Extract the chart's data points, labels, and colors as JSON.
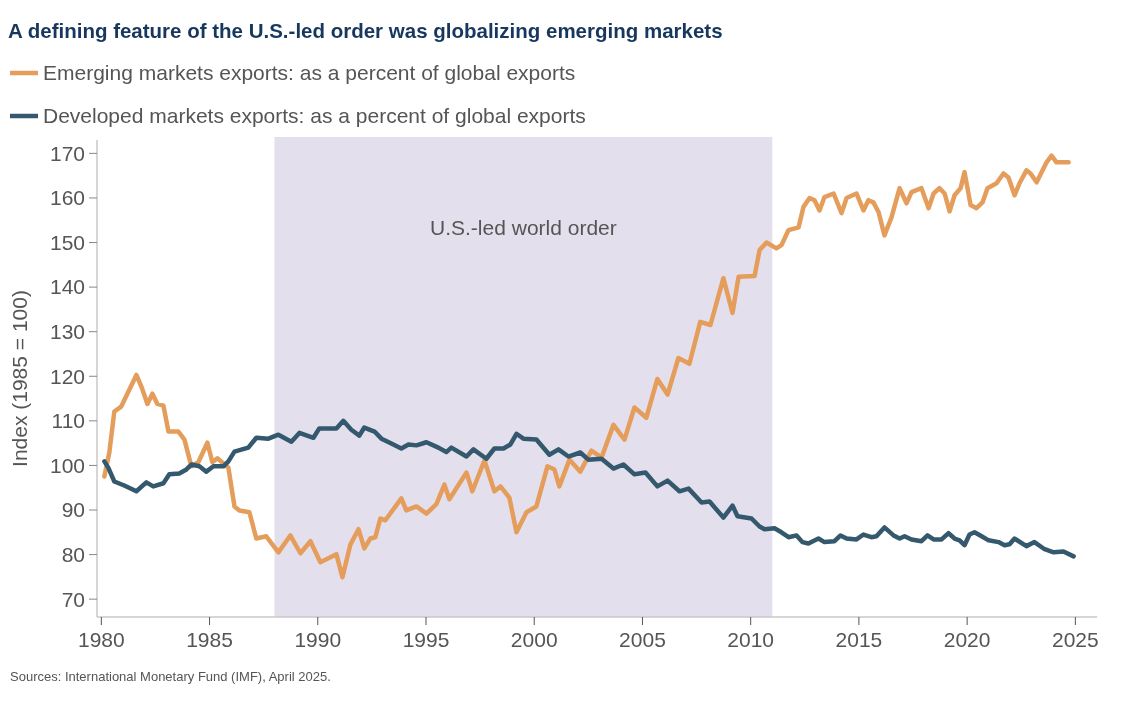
{
  "chart_data": {
    "type": "line",
    "title": "A defining feature of the U.S.-led order was globalizing emerging markets",
    "ylabel": "Index (1985 = 100)",
    "annotations": [
      "Sources: International Monetary Fund (IMF), April 2025."
    ],
    "xlim": [
      1979.8,
      2026
    ],
    "xticks": [
      1980,
      1985,
      1990,
      1995,
      2000,
      2005,
      2010,
      2015,
      2020,
      2025
    ],
    "ylim": [
      66,
      173
    ],
    "yticks": [
      70,
      80,
      90,
      100,
      110,
      120,
      130,
      140,
      150,
      160,
      170
    ],
    "grid": false,
    "legend": "top",
    "marker": "none",
    "line_style": "solid",
    "bands": [
      {
        "axis": "x",
        "from": 1988,
        "to": 2011,
        "label": "U.S.-led world order",
        "color": "#e4dfec"
      }
    ],
    "series": [
      {
        "name": "Emerging markets exports: as a percent of global exports",
        "color": "#e49d5b",
        "x": [
          1980.14,
          1980.37,
          1980.6,
          1980.92,
          1981.62,
          1981.85,
          1982.13,
          1982.36,
          1982.59,
          1982.87,
          1983.1,
          1983.56,
          1983.84,
          1984.16,
          1984.48,
          1984.9,
          1985.13,
          1985.36,
          1985.87,
          1986.15,
          1986.38,
          1986.84,
          1987.16,
          1987.62,
          1988.18,
          1988.73,
          1989.2,
          1989.66,
          1990.12,
          1990.86,
          1991.14,
          1991.51,
          1991.88,
          1992.15,
          1992.43,
          1992.66,
          1992.89,
          1993.12,
          1993.86,
          1994.09,
          1994.56,
          1995.02,
          1995.48,
          1995.85,
          1996.08,
          1996.87,
          1997.14,
          1997.7,
          1998.16,
          1998.44,
          1998.85,
          1999.18,
          1999.64,
          2000.1,
          2000.61,
          2000.93,
          2001.16,
          2001.63,
          2002.13,
          2002.64,
          2003.11,
          2003.66,
          2004.17,
          2004.63,
          2005.18,
          2005.69,
          2006.16,
          2006.66,
          2007.17,
          2007.67,
          2008.14,
          2008.74,
          2009.16,
          2009.44,
          2010.18,
          2010.41,
          2010.73,
          2011.19,
          2011.42,
          2011.75,
          2012.21,
          2012.44,
          2012.72,
          2012.95,
          2013.18,
          2013.41,
          2013.83,
          2014.2,
          2014.43,
          2014.89,
          2015.21,
          2015.44,
          2015.67,
          2015.91,
          2016.18,
          2016.51,
          2016.88,
          2017.2,
          2017.43,
          2017.89,
          2018.22,
          2018.45,
          2018.72,
          2018.96,
          2019.19,
          2019.42,
          2019.7,
          2019.88,
          2020.16,
          2020.43,
          2020.71,
          2020.94,
          2021.36,
          2021.68,
          2021.91,
          2022.19,
          2022.42,
          2022.74,
          2022.93,
          2023.21,
          2023.67,
          2023.9,
          2024.13,
          2024.69
        ],
        "values": [
          97.5,
          102.9,
          112.1,
          113.2,
          120.3,
          117.7,
          113.8,
          116.1,
          113.8,
          113.4,
          107.6,
          107.6,
          105.8,
          99.8,
          100.7,
          105.1,
          100.7,
          101.6,
          99.5,
          90.8,
          89.9,
          89.5,
          83.6,
          84.1,
          80.5,
          84.3,
          80.3,
          83,
          78.3,
          80.1,
          74.9,
          82.3,
          85.7,
          81.4,
          83.6,
          83.9,
          88.1,
          87.7,
          92.6,
          89.9,
          90.8,
          89.2,
          91.3,
          95.7,
          92.4,
          98.4,
          94.2,
          101.1,
          94.2,
          95.3,
          92.8,
          85,
          89.5,
          90.8,
          99.8,
          99.1,
          95.3,
          101.3,
          98.6,
          103.3,
          101.8,
          109.1,
          105.8,
          113,
          110.7,
          119.4,
          115.9,
          124.1,
          122.8,
          132.2,
          131.5,
          142,
          134.2,
          142.3,
          142.5,
          148.3,
          150,
          148.7,
          149.4,
          152.8,
          153.4,
          158,
          160,
          159.5,
          157.2,
          160.2,
          161,
          156.6,
          160,
          161,
          157.2,
          159.5,
          159,
          156.8,
          151.6,
          155.7,
          162.2,
          158.8,
          161.3,
          162.2,
          157.7,
          161,
          162.2,
          161,
          157,
          160.6,
          162.2,
          165.8,
          158.4,
          157.7,
          159,
          162.2,
          163.3,
          165.5,
          164.6,
          160.6,
          163.3,
          166.2,
          165.5,
          163.5,
          168,
          169.5,
          168,
          168
        ]
      },
      {
        "name": "Developed markets exports: as a percent of global exports",
        "color": "#34596e",
        "x": [
          1980.14,
          1980.32,
          1980.6,
          1981.06,
          1981.62,
          1982.08,
          1982.4,
          1982.87,
          1983.14,
          1983.6,
          1983.93,
          1984.16,
          1984.53,
          1984.85,
          1985.18,
          1985.64,
          1985.87,
          1986.15,
          1986.79,
          1987.16,
          1987.72,
          1988.18,
          1988.78,
          1989.15,
          1989.8,
          1990.07,
          1990.86,
          1991.18,
          1991.55,
          1991.92,
          1992.15,
          1992.62,
          1992.94,
          1993.4,
          1993.86,
          1994.19,
          1994.56,
          1995.02,
          1995.57,
          1995.94,
          1996.17,
          1996.87,
          1997.19,
          1997.79,
          1998.16,
          1998.58,
          1998.9,
          1999.18,
          1999.5,
          2000.1,
          2000.7,
          2001.12,
          2001.58,
          2002.13,
          2002.5,
          2003.11,
          2003.66,
          2004.12,
          2004.63,
          2005.14,
          2005.69,
          2006.16,
          2006.71,
          2007.13,
          2007.73,
          2008.1,
          2008.74,
          2009.16,
          2009.39,
          2010.04,
          2010.41,
          2010.64,
          2011.1,
          2011.42,
          2011.75,
          2012.12,
          2012.39,
          2012.67,
          2013.13,
          2013.41,
          2013.87,
          2014.15,
          2014.43,
          2014.89,
          2015.21,
          2015.58,
          2015.81,
          2016.18,
          2016.6,
          2016.88,
          2017.11,
          2017.43,
          2017.89,
          2018.17,
          2018.45,
          2018.82,
          2019.14,
          2019.42,
          2019.65,
          2019.88,
          2020.11,
          2020.34,
          2020.67,
          2020.99,
          2021.45,
          2021.73,
          2021.96,
          2022.19,
          2022.74,
          2023.11,
          2023.58,
          2024,
          2024.45,
          2024.92
        ],
        "values": [
          100.9,
          99.5,
          96.4,
          95.5,
          94.2,
          96.2,
          95.3,
          96,
          98,
          98.2,
          99.1,
          100.2,
          99.8,
          98.6,
          99.8,
          99.8,
          100.9,
          103.1,
          104,
          106.2,
          106,
          106.9,
          105.3,
          107.3,
          106.2,
          108.3,
          108.3,
          110,
          108,
          106.7,
          108.5,
          107.6,
          106,
          104.9,
          103.8,
          104.7,
          104.5,
          105.2,
          104,
          103,
          104,
          102,
          103.6,
          101.5,
          103.8,
          103.8,
          104.7,
          107.1,
          106,
          105.8,
          102.4,
          103.6,
          102,
          102.9,
          101.3,
          101.5,
          99.3,
          100.2,
          98,
          98.4,
          95.3,
          96.6,
          94.2,
          94.8,
          91.7,
          91.9,
          88.3,
          91,
          88.6,
          88.1,
          86.3,
          85.7,
          85.9,
          85,
          83.9,
          84.3,
          82.8,
          82.5,
          83.6,
          82.8,
          83,
          84.3,
          83.6,
          83.4,
          84.5,
          83.9,
          84.1,
          86.1,
          84.3,
          83.6,
          84.1,
          83.4,
          83,
          84.3,
          83.4,
          83.4,
          84.8,
          83.6,
          83.2,
          82.1,
          84.5,
          85,
          84.1,
          83.2,
          82.8,
          82.1,
          82.3,
          83.6,
          81.9,
          82.8,
          81.2,
          80.5,
          80.7,
          79.6
        ]
      }
    ]
  }
}
